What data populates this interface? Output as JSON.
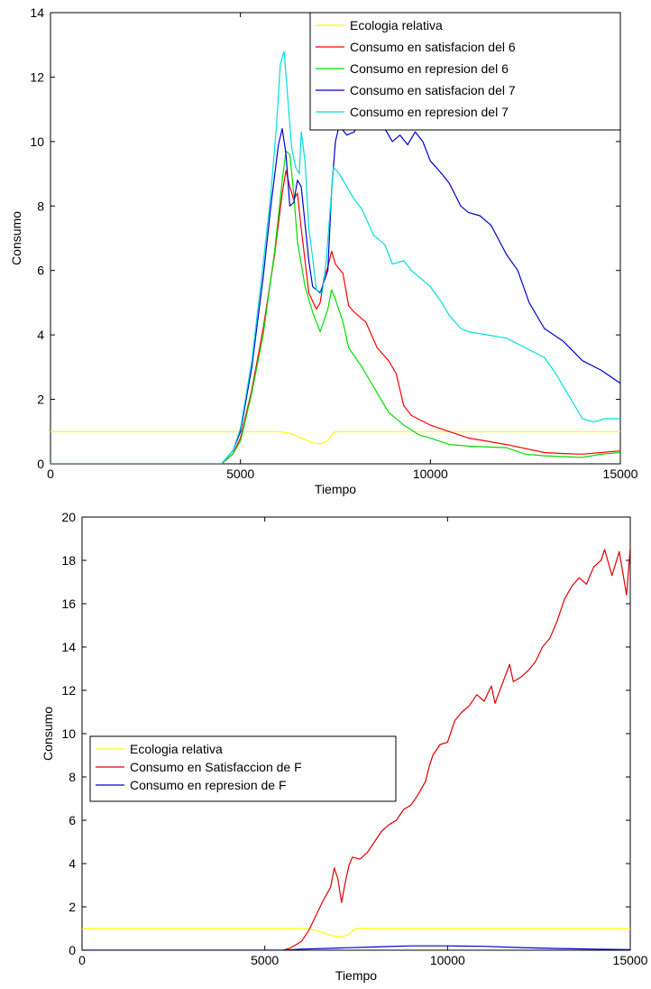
{
  "chart_data": [
    {
      "type": "line",
      "xlabel": "Tiempo",
      "ylabel": "Consumo",
      "xlim": [
        0,
        15000
      ],
      "ylim": [
        0,
        14
      ],
      "xticks": [
        0,
        5000,
        10000,
        15000
      ],
      "yticks": [
        0,
        2,
        4,
        6,
        8,
        10,
        12,
        14
      ],
      "grid": false,
      "legend_position": "top-right",
      "series": [
        {
          "name": "Ecologia relativa",
          "color": "#ffff00",
          "points": [
            [
              0,
              1
            ],
            [
              6000,
              1
            ],
            [
              6300,
              0.95
            ],
            [
              6600,
              0.8
            ],
            [
              6900,
              0.65
            ],
            [
              7100,
              0.62
            ],
            [
              7300,
              0.72
            ],
            [
              7450,
              0.98
            ],
            [
              7550,
              1
            ],
            [
              15000,
              1
            ]
          ]
        },
        {
          "name": "Consumo en satisfacion del 6",
          "color": "#ff0000",
          "points": [
            [
              0,
              0
            ],
            [
              4500,
              0
            ],
            [
              4800,
              0.3
            ],
            [
              5000,
              0.8
            ],
            [
              5300,
              2.3
            ],
            [
              5600,
              4.2
            ],
            [
              5900,
              6.5
            ],
            [
              6100,
              8.4
            ],
            [
              6200,
              9.1
            ],
            [
              6300,
              8.6
            ],
            [
              6400,
              8.2
            ],
            [
              6500,
              8.4
            ],
            [
              6600,
              7.3
            ],
            [
              6800,
              5.3
            ],
            [
              7000,
              4.8
            ],
            [
              7100,
              5.0
            ],
            [
              7200,
              5.8
            ],
            [
              7300,
              6.1
            ],
            [
              7400,
              6.6
            ],
            [
              7500,
              6.2
            ],
            [
              7700,
              5.9
            ],
            [
              7850,
              4.9
            ],
            [
              8000,
              4.7
            ],
            [
              8300,
              4.4
            ],
            [
              8600,
              3.6
            ],
            [
              8900,
              3.2
            ],
            [
              9100,
              2.8
            ],
            [
              9300,
              1.8
            ],
            [
              9500,
              1.5
            ],
            [
              10000,
              1.2
            ],
            [
              10500,
              1.0
            ],
            [
              11000,
              0.8
            ],
            [
              12000,
              0.6
            ],
            [
              13000,
              0.35
            ],
            [
              13500,
              0.32
            ],
            [
              14000,
              0.3
            ],
            [
              14500,
              0.35
            ],
            [
              15000,
              0.4
            ]
          ]
        },
        {
          "name": "Consumo en represion del 6",
          "color": "#00dd00",
          "points": [
            [
              0,
              0
            ],
            [
              4500,
              0
            ],
            [
              4800,
              0.3
            ],
            [
              5000,
              0.7
            ],
            [
              5300,
              2.2
            ],
            [
              5600,
              4.0
            ],
            [
              5900,
              6.6
            ],
            [
              6100,
              8.8
            ],
            [
              6200,
              9.7
            ],
            [
              6300,
              9.6
            ],
            [
              6400,
              8.4
            ],
            [
              6500,
              6.9
            ],
            [
              6700,
              5.5
            ],
            [
              6900,
              4.7
            ],
            [
              7100,
              4.1
            ],
            [
              7300,
              4.8
            ],
            [
              7400,
              5.4
            ],
            [
              7500,
              5.1
            ],
            [
              7700,
              4.4
            ],
            [
              7850,
              3.6
            ],
            [
              8200,
              3.0
            ],
            [
              8600,
              2.2
            ],
            [
              8900,
              1.6
            ],
            [
              9300,
              1.2
            ],
            [
              9700,
              0.9
            ],
            [
              10000,
              0.8
            ],
            [
              10500,
              0.6
            ],
            [
              11000,
              0.55
            ],
            [
              12000,
              0.5
            ],
            [
              12500,
              0.3
            ],
            [
              13000,
              0.25
            ],
            [
              14000,
              0.2
            ],
            [
              14500,
              0.3
            ],
            [
              15000,
              0.35
            ]
          ]
        },
        {
          "name": "Consumo en satisfacion del 7",
          "color": "#0000cc",
          "points": [
            [
              0,
              0
            ],
            [
              4500,
              0
            ],
            [
              4800,
              0.4
            ],
            [
              5000,
              1.0
            ],
            [
              5300,
              3.0
            ],
            [
              5600,
              5.8
            ],
            [
              5800,
              8.0
            ],
            [
              6000,
              9.9
            ],
            [
              6100,
              10.4
            ],
            [
              6200,
              9.6
            ],
            [
              6300,
              8.0
            ],
            [
              6400,
              8.1
            ],
            [
              6500,
              8.8
            ],
            [
              6600,
              8.6
            ],
            [
              6800,
              6.3
            ],
            [
              6900,
              5.5
            ],
            [
              7100,
              5.3
            ],
            [
              7300,
              6.0
            ],
            [
              7400,
              8.5
            ],
            [
              7500,
              10.0
            ],
            [
              7600,
              10.5
            ],
            [
              7800,
              10.2
            ],
            [
              8000,
              10.3
            ],
            [
              8200,
              11.3
            ],
            [
              8400,
              11.0
            ],
            [
              8600,
              11.1
            ],
            [
              8800,
              10.4
            ],
            [
              9000,
              10.0
            ],
            [
              9200,
              10.2
            ],
            [
              9400,
              9.9
            ],
            [
              9600,
              10.3
            ],
            [
              9800,
              10.0
            ],
            [
              10000,
              9.4
            ],
            [
              10300,
              9.0
            ],
            [
              10500,
              8.7
            ],
            [
              10800,
              8.0
            ],
            [
              11000,
              7.8
            ],
            [
              11300,
              7.7
            ],
            [
              11600,
              7.4
            ],
            [
              12000,
              6.5
            ],
            [
              12300,
              6.0
            ],
            [
              12600,
              5.0
            ],
            [
              13000,
              4.2
            ],
            [
              13500,
              3.8
            ],
            [
              14000,
              3.2
            ],
            [
              14500,
              2.9
            ],
            [
              15000,
              2.5
            ]
          ]
        },
        {
          "name": "Consumo en represion del 7",
          "color": "#00dddd",
          "points": [
            [
              0,
              0
            ],
            [
              4500,
              0
            ],
            [
              4800,
              0.4
            ],
            [
              5000,
              1.1
            ],
            [
              5300,
              3.2
            ],
            [
              5600,
              6.2
            ],
            [
              5800,
              8.4
            ],
            [
              5950,
              10.5
            ],
            [
              6050,
              12.4
            ],
            [
              6150,
              12.8
            ],
            [
              6250,
              11.3
            ],
            [
              6350,
              9.8
            ],
            [
              6450,
              9.2
            ],
            [
              6550,
              9.0
            ],
            [
              6600,
              10.3
            ],
            [
              6700,
              9.4
            ],
            [
              6800,
              7.3
            ],
            [
              6900,
              6.4
            ],
            [
              7000,
              5.4
            ],
            [
              7150,
              5.3
            ],
            [
              7250,
              6.2
            ],
            [
              7350,
              7.7
            ],
            [
              7450,
              9.2
            ],
            [
              7600,
              9.0
            ],
            [
              7800,
              8.6
            ],
            [
              8000,
              8.2
            ],
            [
              8200,
              7.9
            ],
            [
              8500,
              7.1
            ],
            [
              8800,
              6.8
            ],
            [
              9000,
              6.2
            ],
            [
              9300,
              6.3
            ],
            [
              9500,
              6.0
            ],
            [
              9800,
              5.7
            ],
            [
              10000,
              5.5
            ],
            [
              10300,
              5.0
            ],
            [
              10500,
              4.6
            ],
            [
              10800,
              4.2
            ],
            [
              11000,
              4.1
            ],
            [
              11500,
              4.0
            ],
            [
              12000,
              3.9
            ],
            [
              12500,
              3.6
            ],
            [
              13000,
              3.3
            ],
            [
              13300,
              2.8
            ],
            [
              13600,
              2.2
            ],
            [
              14000,
              1.4
            ],
            [
              14300,
              1.3
            ],
            [
              14600,
              1.4
            ],
            [
              15000,
              1.4
            ]
          ]
        }
      ]
    },
    {
      "type": "line",
      "xlabel": "Tiempo",
      "ylabel": "Consumo",
      "xlim": [
        0,
        15000
      ],
      "ylim": [
        0,
        20
      ],
      "xticks": [
        0,
        5000,
        10000,
        15000
      ],
      "yticks": [
        0,
        2,
        4,
        6,
        8,
        10,
        12,
        14,
        16,
        18,
        20
      ],
      "grid": false,
      "legend_position": "middle-left",
      "series": [
        {
          "name": "Ecologia relativa",
          "color": "#ffff00",
          "points": [
            [
              0,
              1
            ],
            [
              6000,
              1
            ],
            [
              6300,
              0.95
            ],
            [
              6600,
              0.8
            ],
            [
              6900,
              0.65
            ],
            [
              7100,
              0.62
            ],
            [
              7300,
              0.72
            ],
            [
              7450,
              0.98
            ],
            [
              7550,
              1
            ],
            [
              15000,
              1
            ]
          ]
        },
        {
          "name": "Consumo en Satisfaccion de F",
          "color": "#dd0000",
          "points": [
            [
              0,
              0
            ],
            [
              5500,
              0
            ],
            [
              5700,
              0.1
            ],
            [
              6000,
              0.4
            ],
            [
              6200,
              0.9
            ],
            [
              6400,
              1.6
            ],
            [
              6600,
              2.3
            ],
            [
              6800,
              2.9
            ],
            [
              6900,
              3.8
            ],
            [
              7000,
              3.3
            ],
            [
              7100,
              2.2
            ],
            [
              7200,
              3.1
            ],
            [
              7300,
              3.9
            ],
            [
              7400,
              4.3
            ],
            [
              7600,
              4.2
            ],
            [
              7800,
              4.5
            ],
            [
              8000,
              5.0
            ],
            [
              8200,
              5.5
            ],
            [
              8400,
              5.8
            ],
            [
              8600,
              6.0
            ],
            [
              8800,
              6.5
            ],
            [
              9000,
              6.7
            ],
            [
              9200,
              7.2
            ],
            [
              9400,
              7.8
            ],
            [
              9500,
              8.5
            ],
            [
              9600,
              9.0
            ],
            [
              9800,
              9.5
            ],
            [
              10000,
              9.6
            ],
            [
              10200,
              10.6
            ],
            [
              10400,
              11.0
            ],
            [
              10600,
              11.3
            ],
            [
              10800,
              11.8
            ],
            [
              11000,
              11.5
            ],
            [
              11200,
              12.2
            ],
            [
              11300,
              11.4
            ],
            [
              11500,
              12.3
            ],
            [
              11700,
              13.2
            ],
            [
              11800,
              12.4
            ],
            [
              12000,
              12.6
            ],
            [
              12200,
              12.9
            ],
            [
              12400,
              13.3
            ],
            [
              12600,
              14.0
            ],
            [
              12800,
              14.4
            ],
            [
              13000,
              15.2
            ],
            [
              13200,
              16.2
            ],
            [
              13400,
              16.8
            ],
            [
              13600,
              17.2
            ],
            [
              13800,
              16.9
            ],
            [
              14000,
              17.7
            ],
            [
              14200,
              18.0
            ],
            [
              14300,
              18.5
            ],
            [
              14500,
              17.3
            ],
            [
              14700,
              18.4
            ],
            [
              14900,
              16.4
            ],
            [
              15000,
              18.6
            ],
            [
              15100,
              17.8
            ],
            [
              15200,
              18.0
            ]
          ]
        },
        {
          "name": "Consumo en represion de F",
          "color": "#0000cc",
          "points": [
            [
              0,
              0
            ],
            [
              5500,
              0
            ],
            [
              6000,
              0.05
            ],
            [
              7000,
              0.1
            ],
            [
              8000,
              0.15
            ],
            [
              9000,
              0.2
            ],
            [
              10000,
              0.2
            ],
            [
              11000,
              0.18
            ],
            [
              12000,
              0.12
            ],
            [
              13000,
              0.08
            ],
            [
              14000,
              0.05
            ],
            [
              15000,
              0.03
            ]
          ]
        }
      ]
    }
  ]
}
